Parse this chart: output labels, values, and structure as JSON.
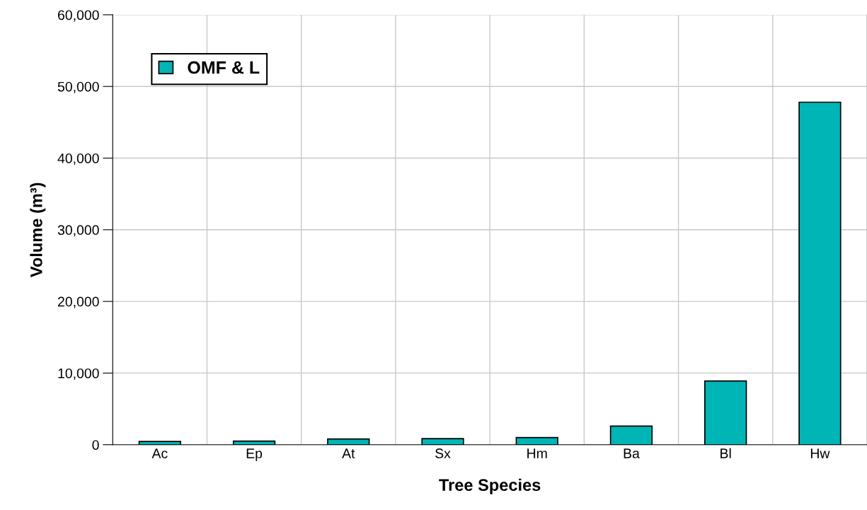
{
  "chart_data": {
    "type": "bar",
    "xlabel": "Tree Species",
    "ylabel": "Volume (m³)",
    "categories": [
      "Ac",
      "Ep",
      "At",
      "Sx",
      "Hm",
      "Ba",
      "Bl",
      "Hw"
    ],
    "series": [
      {
        "name": "OMF & L",
        "color": "#00b5b5",
        "values": [
          450,
          500,
          800,
          850,
          1000,
          2600,
          8900,
          47800
        ]
      }
    ],
    "ylim": [
      0,
      60000
    ],
    "yticks": [
      {
        "value": 0,
        "label": "0"
      },
      {
        "value": 10000,
        "label": "10,000"
      },
      {
        "value": 20000,
        "label": "20,000"
      },
      {
        "value": 30000,
        "label": "30,000"
      },
      {
        "value": 40000,
        "label": "40,000"
      },
      {
        "value": 50000,
        "label": "50,000"
      },
      {
        "value": 60000,
        "label": "60,000"
      }
    ],
    "grid": true,
    "legend": "top left"
  }
}
